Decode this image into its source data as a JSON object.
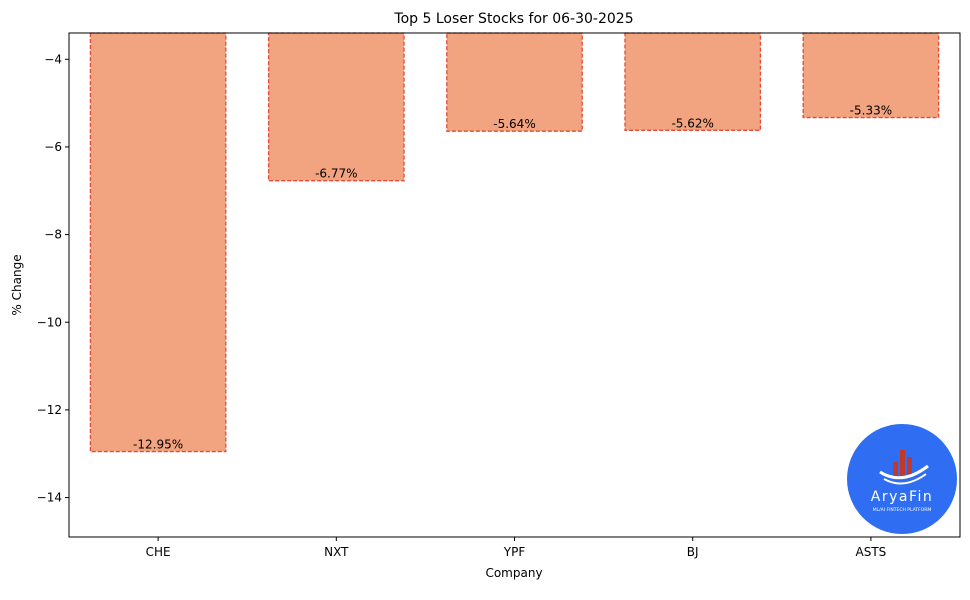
{
  "chart_data": {
    "type": "bar",
    "title": "Top 5 Loser Stocks for 06-30-2025",
    "xlabel": "Company",
    "ylabel": "% Change",
    "categories": [
      "CHE",
      "NXT",
      "YPF",
      "BJ",
      "ASTS"
    ],
    "values": [
      -12.95,
      -6.77,
      -5.64,
      -5.62,
      -5.33
    ],
    "data_labels": [
      "-12.95%",
      "-6.77%",
      "-5.64%",
      "-5.62%",
      "-5.33%"
    ],
    "ylim": [
      -14.9,
      -3.4
    ],
    "yticks": [
      -4,
      -6,
      -8,
      -10,
      -12,
      -14
    ],
    "ytick_labels": [
      "−4",
      "−6",
      "−8",
      "−10",
      "−12",
      "−14"
    ],
    "grid": false,
    "bar_color": "#f2a37f",
    "bar_edge_color": "#e04b3a"
  },
  "logo": {
    "name": "AryaFin",
    "tagline": "ML/AI FINTECH PLATFORM",
    "bg_color": "#2f6ef2",
    "icon": "bar-chart-swoosh-icon"
  }
}
